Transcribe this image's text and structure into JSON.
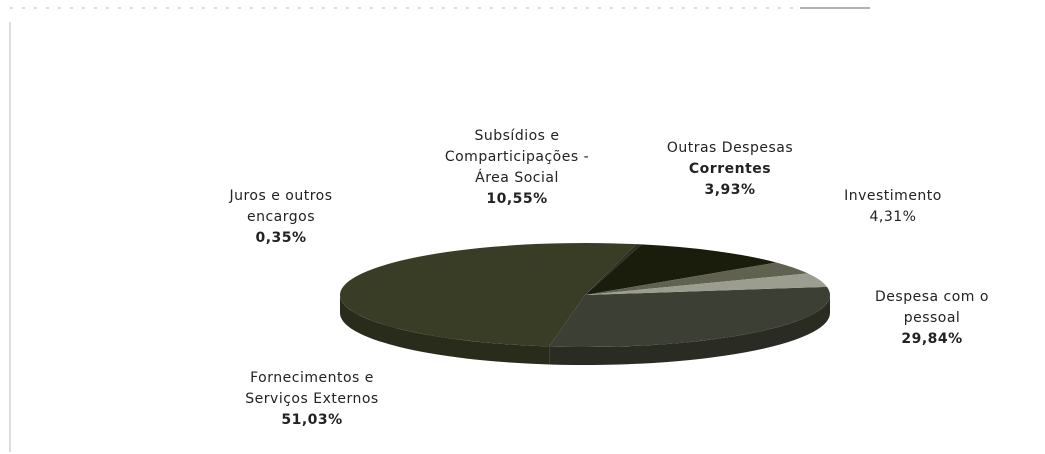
{
  "chart_data": {
    "type": "pie",
    "style": "3d",
    "slices": [
      {
        "label": "Despesa com o pessoal",
        "value": 29.84,
        "display": "29,84%",
        "color": "#3c3f34"
      },
      {
        "label": "Fornecimentos e Serviços Externos",
        "value": 51.03,
        "display": "51,03%",
        "color": "#3a3d26"
      },
      {
        "label": "Juros e outros encargos",
        "value": 0.35,
        "display": "0,35%",
        "color": "#2e3023"
      },
      {
        "label": "Subsídios e Comparticipações - Área Social",
        "value": 10.55,
        "display": "10,55%",
        "color": "#1a1c0c"
      },
      {
        "label": "Outras Despesas Correntes",
        "value": 3.93,
        "display": "3,93%",
        "color": "#60624f"
      },
      {
        "label": "Investimento",
        "value": 4.31,
        "display": "4,31%",
        "color": "#9b9d8e"
      }
    ],
    "legend": "none"
  },
  "labels": {
    "juros": {
      "line1": "Juros e outros",
      "line2": "encargos",
      "pct": "0,35%"
    },
    "subsidios": {
      "line1": "Subsídios e",
      "line2": "Comparticipações -",
      "line3": "Área Social",
      "pct": "10,55%"
    },
    "outras": {
      "line1": "Outras Despesas",
      "line2": "Correntes",
      "pct": "3,93%"
    },
    "investimento": {
      "line1": "Investimento",
      "pct": "4,31%"
    },
    "pessoal": {
      "line1": "Despesa com o",
      "line2": "pessoal",
      "pct": "29,84%"
    },
    "fornecimentos": {
      "line1": "Fornecimentos e",
      "line2": "Serviços Externos",
      "pct": "51,03%"
    }
  }
}
